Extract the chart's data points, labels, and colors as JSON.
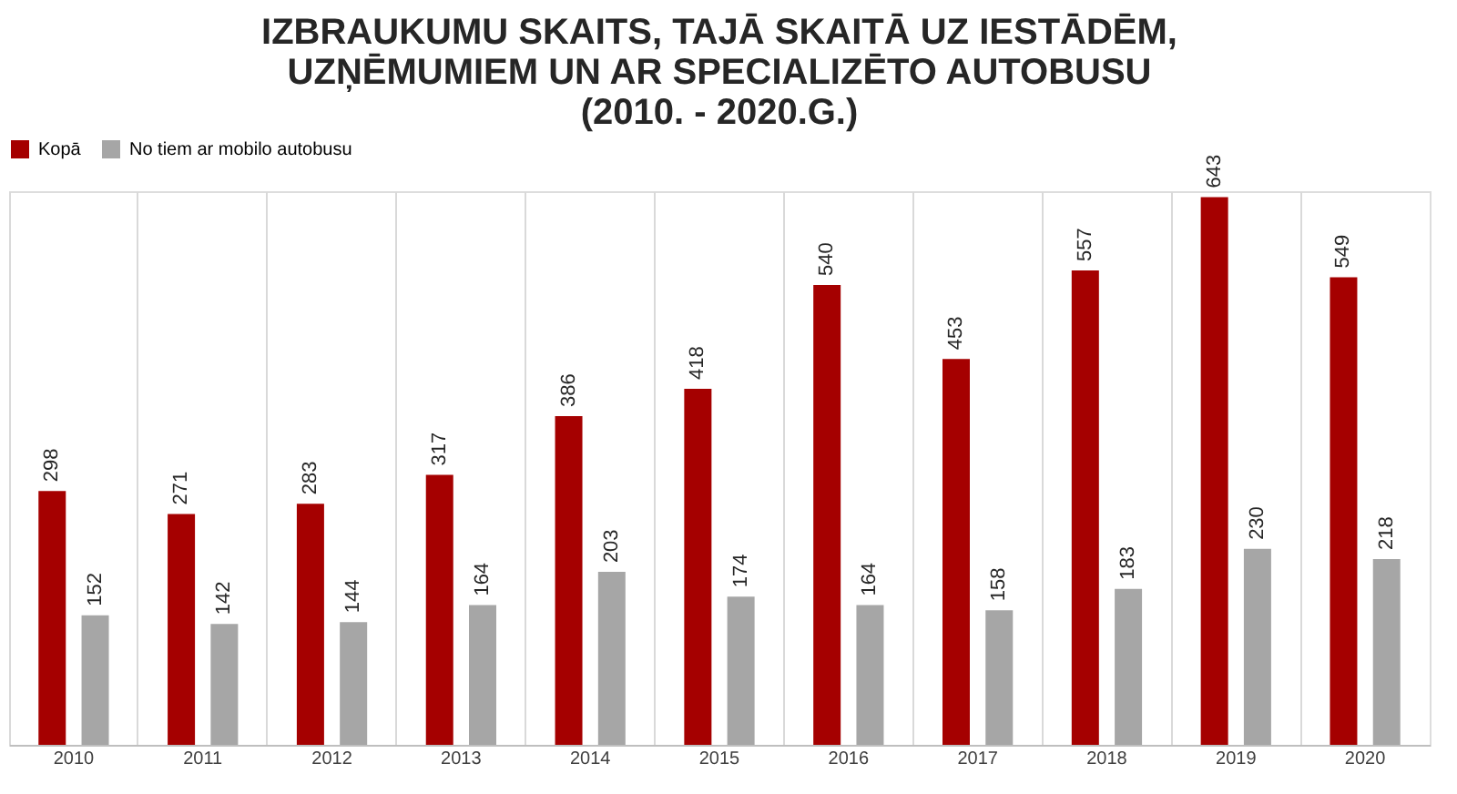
{
  "chart_data": {
    "type": "bar",
    "title": [
      "IZBRAUKUMU SKAITS, TAJĀ SKAITĀ UZ IESTĀDĒM,",
      "UZŅĒMUMIEM UN AR SPECIALIZĒTO AUTOBUSU",
      "(2010. - 2020.G.)"
    ],
    "categories": [
      "2010",
      "2011",
      "2012",
      "2013",
      "2014",
      "2015",
      "2016",
      "2017",
      "2018",
      "2019",
      "2020"
    ],
    "series": [
      {
        "name": "Kopā",
        "color": "#a50000",
        "values": [
          298,
          271,
          283,
          317,
          386,
          418,
          540,
          453,
          557,
          643,
          549
        ]
      },
      {
        "name": "No tiem ar mobilo autobusu",
        "color": "#a6a6a6",
        "values": [
          152,
          142,
          144,
          164,
          203,
          174,
          164,
          158,
          183,
          230,
          218
        ]
      }
    ],
    "data_labels": true,
    "legend": "top",
    "grid": "x",
    "tick_labels": "x"
  }
}
